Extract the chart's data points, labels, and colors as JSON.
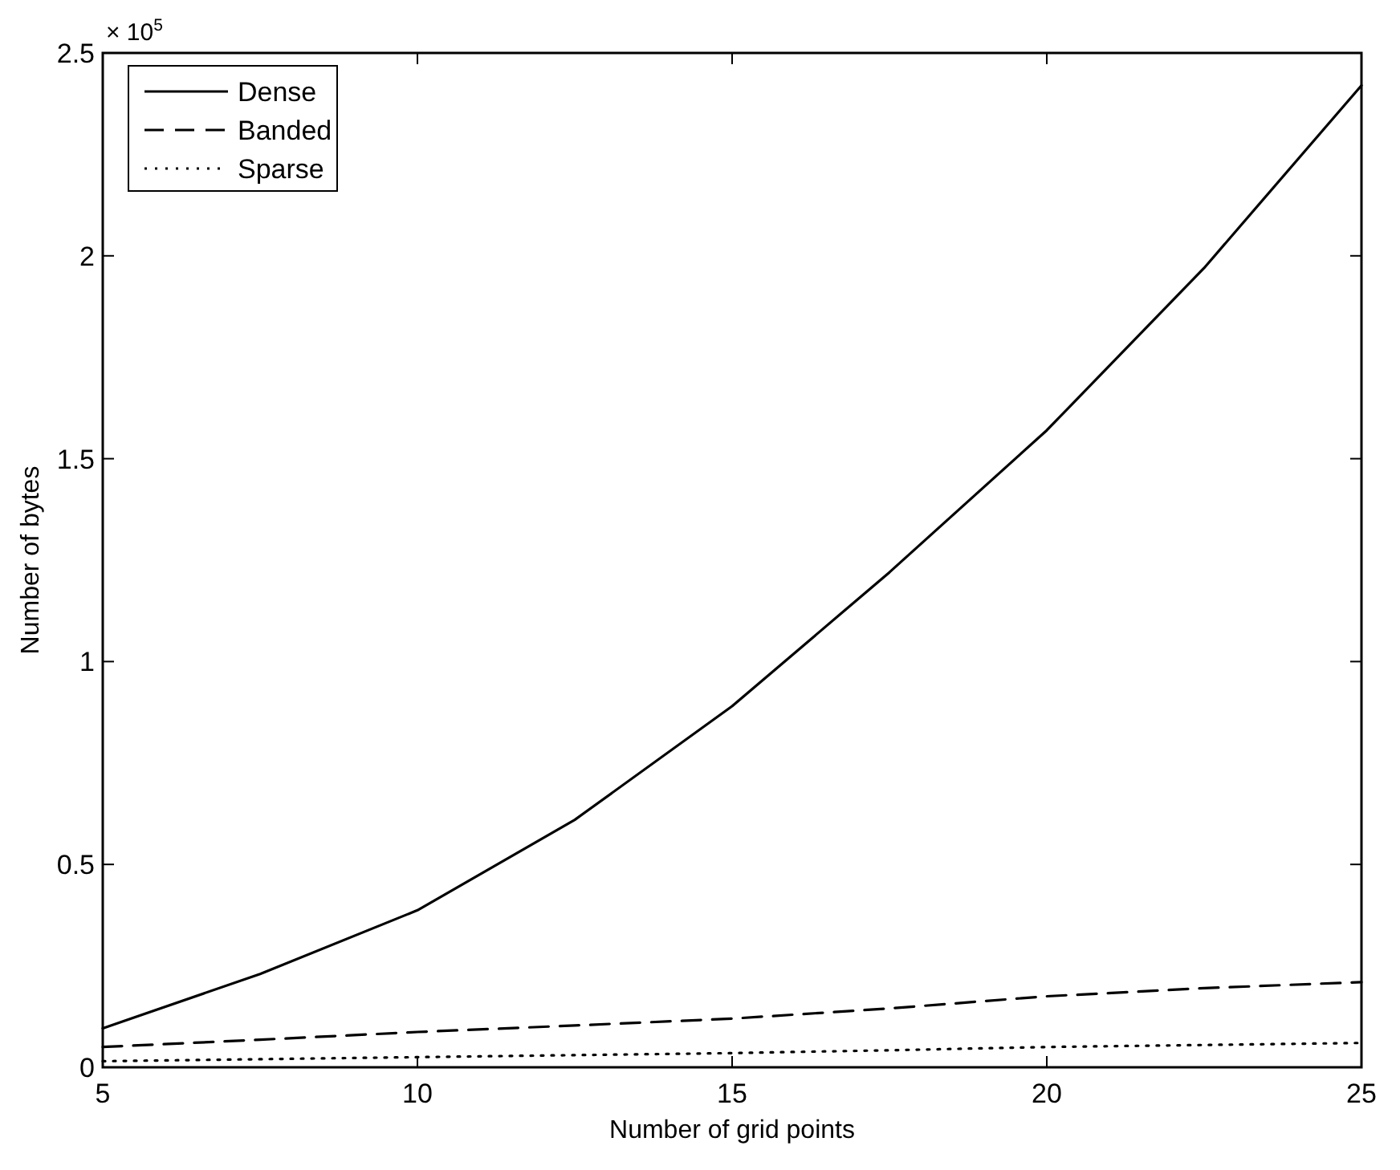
{
  "chart_data": {
    "type": "line",
    "xlabel": "Number of grid points",
    "ylabel": "Number of bytes",
    "annotations": [
      "× 10$^{5}$"
    ],
    "xlim": [
      5,
      25
    ],
    "xticks": [
      5,
      10,
      15,
      20,
      25
    ],
    "ylim": [
      0,
      2.5
    ],
    "yticks": [
      0,
      0.5,
      1,
      1.5,
      2,
      2.5
    ],
    "legend": "top left",
    "grid": false,
    "x": [
      5,
      7.5,
      10,
      12.5,
      15,
      17.5,
      20,
      22.5,
      25
    ],
    "series": [
      {
        "name": "Dense",
        "color": "#000000",
        "line_style": "solid",
        "values": [
          0.096,
          0.23,
          0.387,
          0.61,
          0.89,
          1.22,
          1.57,
          1.97,
          2.42
        ]
      },
      {
        "name": "Banded",
        "color": "#000000",
        "line_style": "dashed",
        "values": [
          0.05,
          0.068,
          0.087,
          0.103,
          0.12,
          0.145,
          0.175,
          0.195,
          0.21
        ]
      },
      {
        "name": "Sparse",
        "color": "#000000",
        "line_style": "dotted",
        "values": [
          0.015,
          0.02,
          0.025,
          0.03,
          0.035,
          0.042,
          0.05,
          0.055,
          0.06
        ]
      }
    ]
  }
}
